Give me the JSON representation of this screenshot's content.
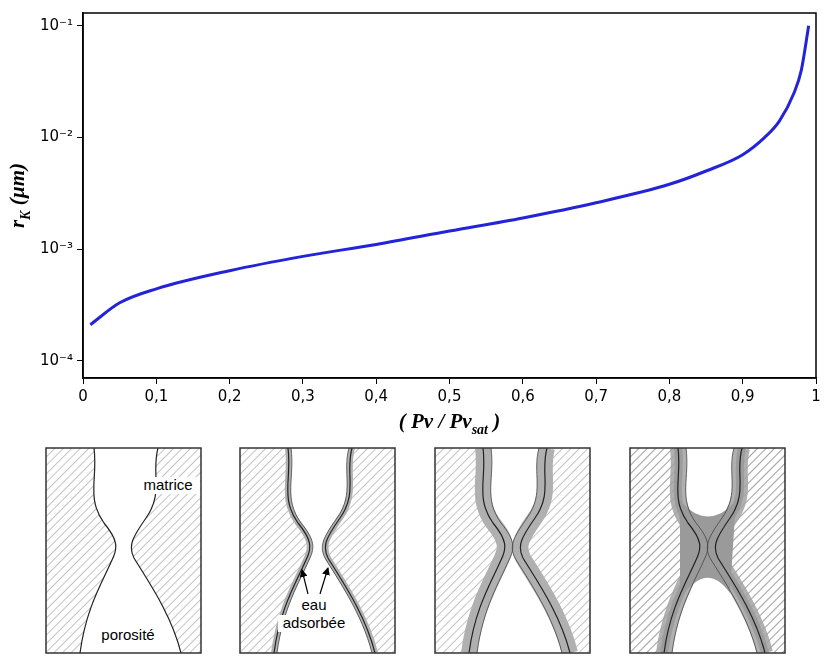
{
  "chart_data": {
    "type": "line",
    "xlabel": [
      {
        "text": "( Pv / Pv"
      },
      {
        "text": "sat",
        "sub": true
      },
      {
        "text": " )"
      }
    ],
    "ylabel": [
      {
        "text": "r"
      },
      {
        "text": "K",
        "sub": true
      },
      {
        "text": " (µm)"
      }
    ],
    "x": [
      0.01,
      0.05,
      0.1,
      0.2,
      0.3,
      0.4,
      0.5,
      0.6,
      0.7,
      0.8,
      0.85,
      0.9,
      0.93,
      0.95,
      0.97,
      0.98,
      0.99
    ],
    "values": [
      0.00021,
      0.00033,
      0.00044,
      0.00064,
      0.00086,
      0.0011,
      0.00145,
      0.0019,
      0.0026,
      0.0038,
      0.005,
      0.007,
      0.01,
      0.014,
      0.025,
      0.04,
      0.1
    ],
    "color": "#2323d8",
    "log": "y",
    "grid": false,
    "xlim": [
      0,
      1
    ],
    "xticks": [
      0,
      {
        "value": 0.1,
        "label": "0,1"
      },
      {
        "value": 0.2,
        "label": "0,2"
      },
      {
        "value": 0.3,
        "label": "0,3"
      },
      {
        "value": 0.4,
        "label": "0,4"
      },
      {
        "value": 0.5,
        "label": "0,5"
      },
      {
        "value": 0.6,
        "label": "0,6"
      },
      {
        "value": 0.7,
        "label": "0,7"
      },
      {
        "value": 0.8,
        "label": "0,8"
      },
      {
        "value": 0.9,
        "label": "0,9"
      },
      1
    ],
    "ylim": [
      7.5e-05,
      0.13
    ],
    "yticks": [
      {
        "value": 0.0001,
        "label": "10⁻⁴"
      },
      {
        "value": 0.001,
        "label": "10⁻³"
      },
      {
        "value": 0.01,
        "label": "10⁻²"
      },
      {
        "value": 0.1,
        "label": "10⁻¹"
      }
    ]
  },
  "illustration": {
    "panels": [
      {
        "matrix_label": "matrice",
        "pore_label": "porosité"
      },
      {
        "water_label": [
          "eau",
          "adsorbée"
        ]
      },
      {},
      {}
    ]
  }
}
